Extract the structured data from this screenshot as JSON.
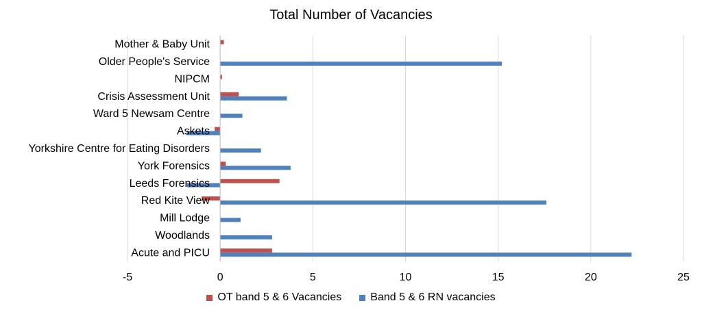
{
  "chart_data": {
    "type": "bar",
    "orientation": "horizontal",
    "title": "Total Number of Vacancies",
    "xlabel": "",
    "ylabel": "",
    "xlim": [
      -5,
      25
    ],
    "xticks": [
      -5,
      0,
      5,
      10,
      15,
      20,
      25
    ],
    "grid": true,
    "legend_position": "bottom",
    "categories": [
      "Mother & Baby Unit",
      "Older People's Service",
      "NIPCM",
      "Crisis Assessment Unit",
      "Ward 5 Newsam Centre",
      "Askets",
      "Yorkshire Centre for Eating Disorders",
      "York Forensics",
      "Leeds Forensics",
      "Red Kite View",
      "Mill Lodge",
      "Woodlands",
      "Acute and PICU"
    ],
    "series": [
      {
        "name": "OT band 5 & 6 Vacancies",
        "color": "#c0504d",
        "values": [
          0.2,
          0,
          0.1,
          1.0,
          0,
          -0.3,
          0,
          0.3,
          3.2,
          -1.0,
          0,
          0,
          2.8
        ]
      },
      {
        "name": "Band 5 & 6 RN vacancies",
        "color": "#4f81bd",
        "values": [
          0,
          15.2,
          0,
          3.6,
          1.2,
          -1.8,
          2.2,
          3.8,
          -1.8,
          17.6,
          1.1,
          2.8,
          22.2
        ]
      }
    ]
  }
}
